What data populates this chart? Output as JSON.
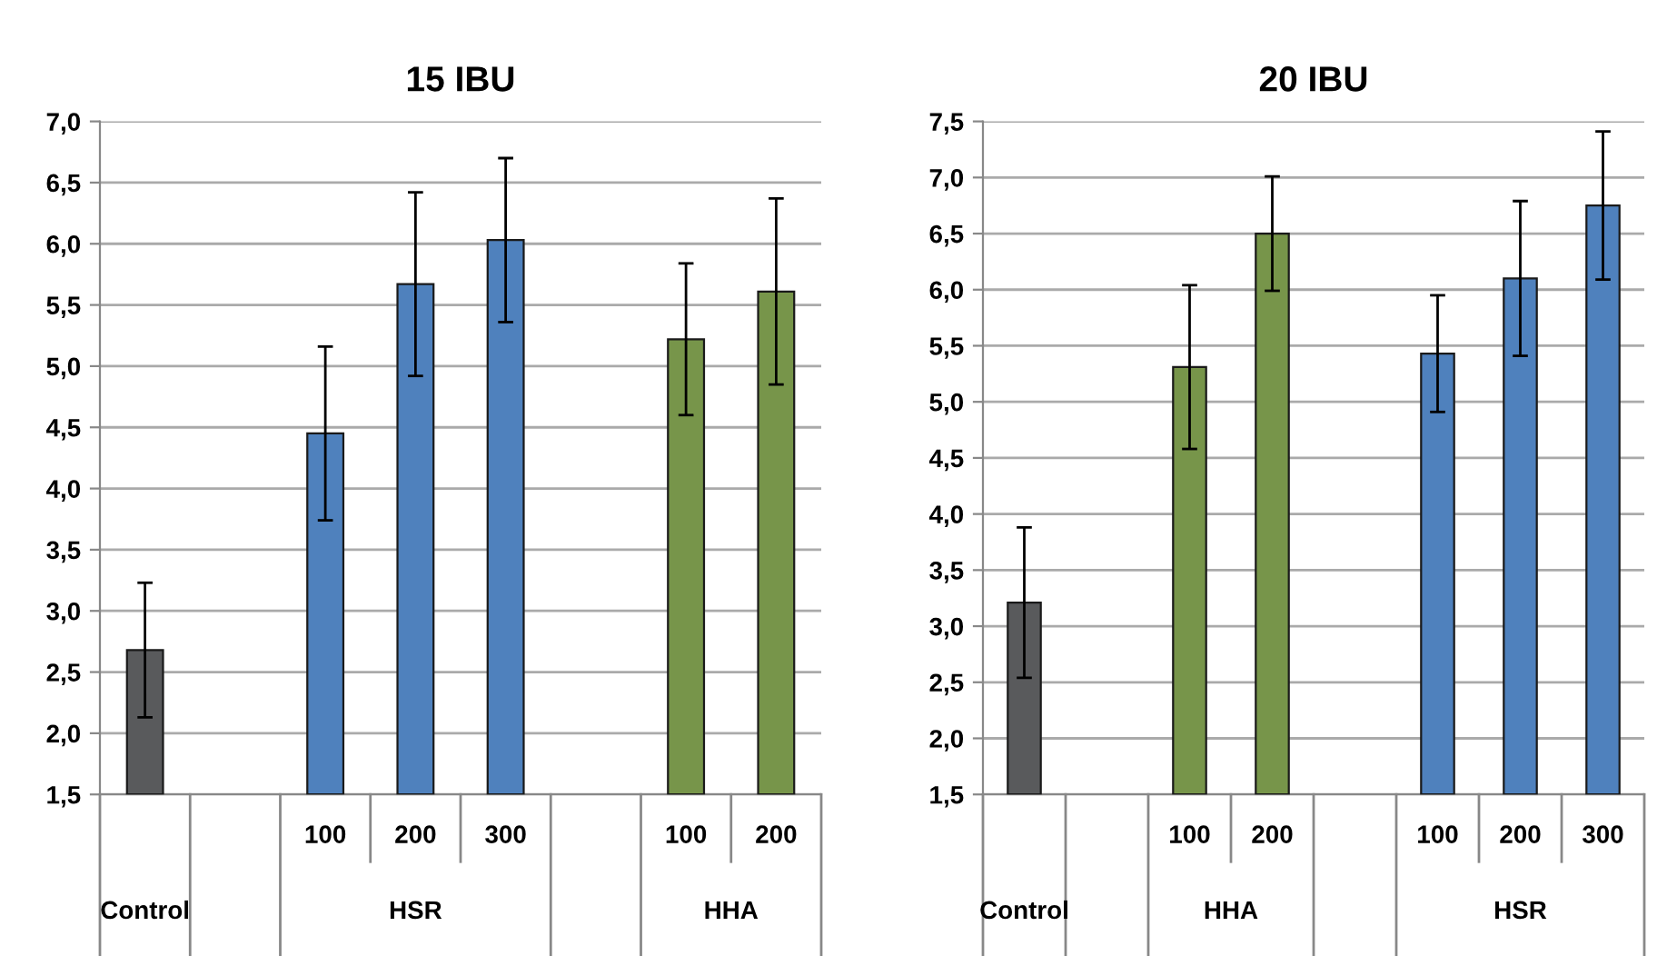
{
  "chart_data": [
    {
      "type": "bar",
      "title": "15 IBU",
      "categories": [
        null,
        null,
        "100",
        "200",
        "300",
        null,
        "100",
        "200"
      ],
      "values": [
        2.68,
        null,
        4.45,
        5.67,
        6.03,
        null,
        5.22,
        5.61
      ],
      "errors": [
        0.55,
        null,
        0.71,
        0.75,
        0.67,
        null,
        0.62,
        0.76
      ],
      "colors": [
        "#595a5c",
        null,
        "#4f81bd",
        "#4f81bd",
        "#4f81bd",
        null,
        "#77954a",
        "#77954a"
      ],
      "annotations": [
        "Control",
        "HSR",
        "HHA"
      ],
      "ylim": [
        1.5,
        7.0
      ],
      "yticks": [
        {
          "value": 1.5,
          "label": "1,5"
        },
        {
          "value": 2.0,
          "label": "2,0"
        },
        {
          "value": 2.5,
          "label": "2,5"
        },
        {
          "value": 3.0,
          "label": "3,0"
        },
        {
          "value": 3.5,
          "label": "3,5"
        },
        {
          "value": 4.0,
          "label": "4,0"
        },
        {
          "value": 4.5,
          "label": "4,5"
        },
        {
          "value": 5.0,
          "label": "5,0"
        },
        {
          "value": 5.5,
          "label": "5,5"
        },
        {
          "value": 6.0,
          "label": "6,0"
        },
        {
          "value": 6.5,
          "label": "6,5"
        },
        {
          "value": 7.0,
          "label": "7,0"
        }
      ],
      "grid": "y",
      "legend": false
    },
    {
      "type": "bar",
      "title": "20 IBU",
      "categories": [
        null,
        null,
        "100",
        "200",
        null,
        "100",
        "200",
        "300"
      ],
      "values": [
        3.21,
        null,
        5.31,
        6.5,
        null,
        5.43,
        6.1,
        6.75
      ],
      "errors": [
        0.67,
        null,
        0.73,
        0.51,
        null,
        0.52,
        0.69,
        0.66
      ],
      "colors": [
        "#595a5c",
        null,
        "#77954a",
        "#77954a",
        null,
        "#4f81bd",
        "#4f81bd",
        "#4f81bd"
      ],
      "annotations": [
        "Control",
        "HHA",
        "HSR"
      ],
      "ylim": [
        1.5,
        7.5
      ],
      "yticks": [
        {
          "value": 1.5,
          "label": "1,5"
        },
        {
          "value": 2.0,
          "label": "2,0"
        },
        {
          "value": 2.5,
          "label": "2,5"
        },
        {
          "value": 3.0,
          "label": "3,0"
        },
        {
          "value": 3.5,
          "label": "3,5"
        },
        {
          "value": 4.0,
          "label": "4,0"
        },
        {
          "value": 4.5,
          "label": "4,5"
        },
        {
          "value": 5.0,
          "label": "5,0"
        },
        {
          "value": 5.5,
          "label": "5,5"
        },
        {
          "value": 6.0,
          "label": "6,0"
        },
        {
          "value": 6.5,
          "label": "6,5"
        },
        {
          "value": 7.0,
          "label": "7,0"
        },
        {
          "value": 7.5,
          "label": "7,5"
        }
      ],
      "grid": "y",
      "legend": false
    }
  ]
}
